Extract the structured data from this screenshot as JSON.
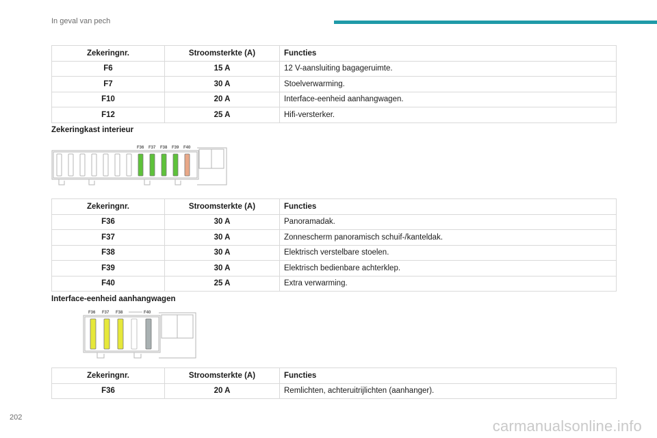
{
  "header": {
    "section_title": "In geval van pech",
    "accent_color": "#1f9aa8"
  },
  "page_number": "202",
  "watermark": "carmanualsonline.info",
  "table_headers": {
    "fuse": "Zekeringnr.",
    "current": "Stroomsterkte (A)",
    "functions": "Functies"
  },
  "table1": {
    "rows": [
      {
        "fuse": "F6",
        "current": "15 A",
        "function": "12 V-aansluiting bagageruimte."
      },
      {
        "fuse": "F7",
        "current": "30 A",
        "function": "Stoelverwarming."
      },
      {
        "fuse": "F10",
        "current": "20 A",
        "function": "Interface-eenheid aanhangwagen."
      },
      {
        "fuse": "F12",
        "current": "25 A",
        "function": "Hifi-versterker."
      }
    ]
  },
  "section_interior": {
    "heading": "Zekeringkast interieur",
    "labels": [
      "F36",
      "F37",
      "F38",
      "F39",
      "F40"
    ],
    "colors": {
      "green": "#5ec23a",
      "salmon": "#e8a888"
    }
  },
  "table2": {
    "rows": [
      {
        "fuse": "F36",
        "current": "30 A",
        "function": "Panoramadak."
      },
      {
        "fuse": "F37",
        "current": "30 A",
        "function": "Zonnescherm panoramisch schuif-/kanteldak."
      },
      {
        "fuse": "F38",
        "current": "30 A",
        "function": "Elektrisch verstelbare stoelen."
      },
      {
        "fuse": "F39",
        "current": "30 A",
        "function": "Elektrisch bedienbare achterklep."
      },
      {
        "fuse": "F40",
        "current": "25 A",
        "function": "Extra verwarming."
      }
    ]
  },
  "section_trailer": {
    "heading": "Interface-eenheid aanhangwagen",
    "labels": [
      "F36",
      "F37",
      "F38",
      "F40"
    ],
    "colors": {
      "yellow": "#e6e83a",
      "grey": "#a9b1b2"
    }
  },
  "table3": {
    "rows": [
      {
        "fuse": "F36",
        "current": "20 A",
        "function": "Remlichten, achteruitrijlichten (aanhanger)."
      }
    ]
  }
}
